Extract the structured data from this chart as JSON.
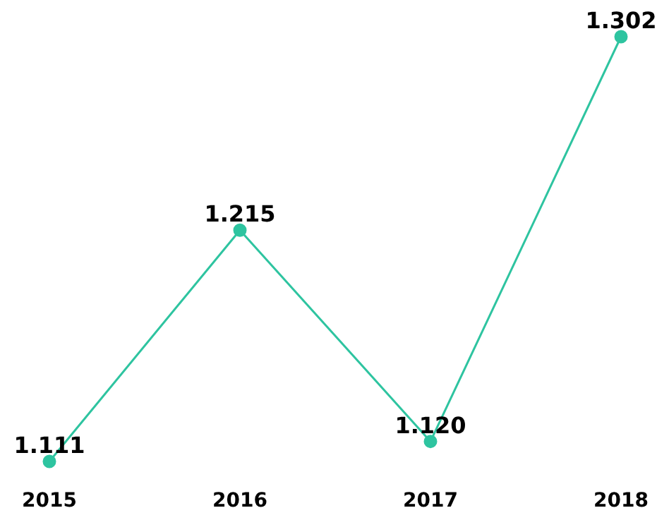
{
  "chart_data": {
    "type": "line",
    "categories": [
      "2015",
      "2016",
      "2017",
      "2018"
    ],
    "values": [
      1.111,
      1.215,
      1.12,
      1.302
    ],
    "value_labels": [
      "1.111",
      "1.215",
      "1.120",
      "1.302"
    ],
    "color": "#2ec4a0",
    "marker": "circle",
    "line_style": "solid",
    "grid": false,
    "legend": false,
    "tick_labels": "x"
  }
}
